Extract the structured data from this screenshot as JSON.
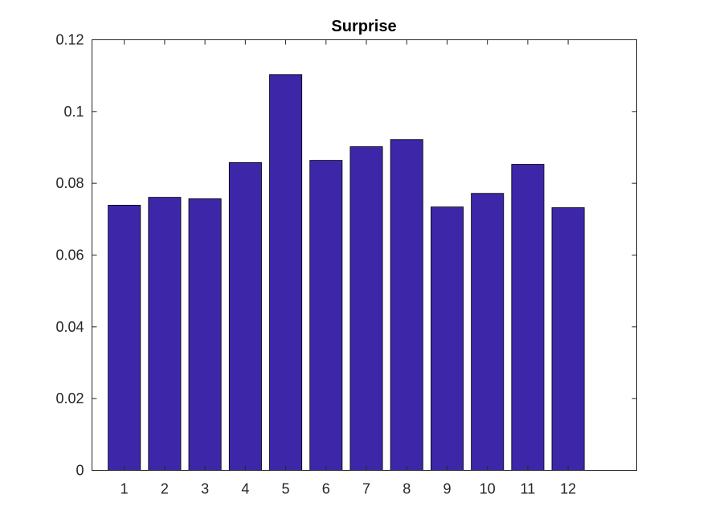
{
  "chart_data": {
    "type": "bar",
    "title": "Surprise",
    "xlabel": "",
    "ylabel": "",
    "categories": [
      "1",
      "2",
      "3",
      "4",
      "5",
      "6",
      "7",
      "8",
      "9",
      "10",
      "11",
      "12"
    ],
    "values": [
      0.0739,
      0.0761,
      0.0757,
      0.0858,
      0.1103,
      0.0864,
      0.0902,
      0.0922,
      0.0734,
      0.0772,
      0.0853,
      0.0732
    ],
    "xlim": [
      0.2,
      13.7
    ],
    "ylim": [
      0,
      0.12
    ],
    "yticks": [
      "0",
      "0.02",
      "0.04",
      "0.06",
      "0.08",
      "0.1",
      "0.12"
    ],
    "grid": false,
    "legend": "none",
    "bar_color": "#3d27a8",
    "bar_edge_color": "#000000",
    "axis_color": "#262626"
  }
}
